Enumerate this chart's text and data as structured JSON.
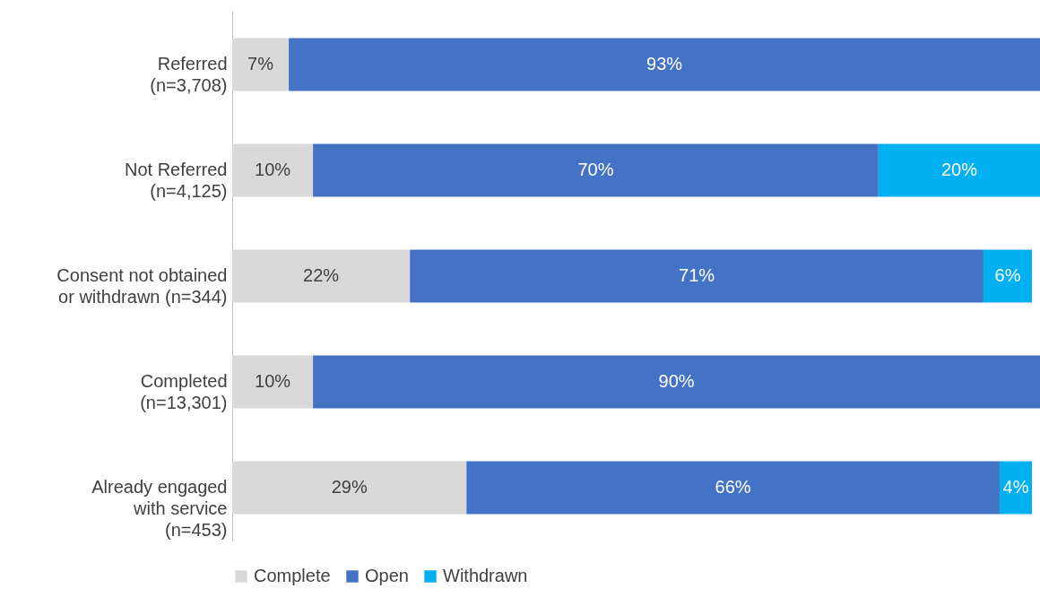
{
  "chart_data": {
    "type": "bar",
    "orientation": "horizontal",
    "stacked": true,
    "tick_labels": "y",
    "legend": "bottom",
    "categories": [
      "Referred\n(n=3,708)",
      "Not Referred\n(n=4,125)",
      "Consent not obtained\nor withdrawn (n=344)",
      "Completed\n(n=13,301)",
      "Already engaged\nwith service\n(n=453)"
    ],
    "series": [
      {
        "name": "Complete",
        "color": "#d9d9d9",
        "values": [
          7,
          10,
          22,
          10,
          29
        ],
        "value_labels": [
          "7%",
          "10%",
          "22%",
          "10%",
          "29%"
        ]
      },
      {
        "name": "Open",
        "color": "#4472c4",
        "values": [
          93,
          70,
          71,
          90,
          66
        ],
        "value_labels": [
          "93%",
          "70%",
          "71%",
          "90%",
          "66%"
        ]
      },
      {
        "name": "Withdrawn",
        "color": "#00b0f0",
        "values": [
          null,
          20,
          6,
          null,
          4
        ],
        "value_labels": [
          null,
          "20%",
          "6%",
          null,
          "4%"
        ]
      }
    ]
  }
}
